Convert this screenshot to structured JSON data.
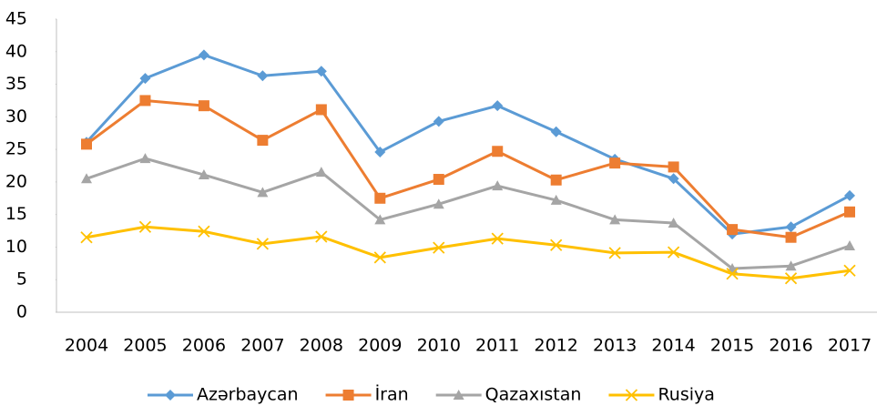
{
  "chart_data": {
    "type": "line",
    "categories": [
      "2004",
      "2005",
      "2006",
      "2007",
      "2008",
      "2009",
      "2010",
      "2011",
      "2012",
      "2013",
      "2014",
      "2015",
      "2016",
      "2017"
    ],
    "series": [
      {
        "name": "Azərbaycan",
        "color": "#5b9bd5",
        "marker": "diamond",
        "values": [
          26.1,
          35.9,
          39.5,
          36.3,
          37.0,
          24.6,
          29.3,
          31.7,
          27.7,
          23.5,
          20.5,
          12.0,
          13.1,
          17.9
        ]
      },
      {
        "name": "İran",
        "color": "#ed7d31",
        "marker": "square",
        "values": [
          25.8,
          32.5,
          31.7,
          26.4,
          31.1,
          17.5,
          20.4,
          24.7,
          20.3,
          22.9,
          22.3,
          12.7,
          11.5,
          15.4
        ]
      },
      {
        "name": "Qazaxıstan",
        "color": "#a5a5a5",
        "marker": "triangle",
        "values": [
          20.5,
          23.6,
          21.1,
          18.4,
          21.5,
          14.2,
          16.6,
          19.4,
          17.2,
          14.2,
          13.7,
          6.7,
          7.1,
          10.2
        ]
      },
      {
        "name": "Rusiya",
        "color": "#ffc000",
        "marker": "x",
        "values": [
          11.5,
          13.1,
          12.4,
          10.5,
          11.6,
          8.4,
          9.9,
          11.3,
          10.3,
          9.1,
          9.2,
          5.9,
          5.2,
          6.4
        ]
      }
    ],
    "ylim": [
      0,
      45
    ],
    "yticks": [
      0,
      5,
      10,
      15,
      20,
      25,
      30,
      35,
      40,
      45
    ],
    "grid": false,
    "legend": "bottom"
  }
}
